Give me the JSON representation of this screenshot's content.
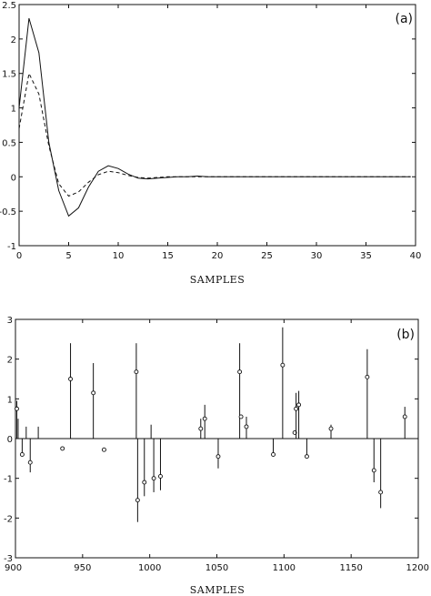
{
  "chart_data": [
    {
      "type": "line",
      "panel_label": "(a)",
      "xlabel": "SAMPLES",
      "ylabel": "",
      "xlim": [
        0,
        40
      ],
      "ylim": [
        -1,
        2.5
      ],
      "xticks": [
        0,
        5,
        10,
        15,
        20,
        25,
        30,
        35,
        40
      ],
      "yticks": [
        2.5,
        2,
        1.5,
        1,
        0.5,
        0,
        -0.5,
        -1
      ],
      "ytick_labels": [
        "2.5",
        "2",
        "1.5",
        "1",
        "0.5",
        "0",
        "-0.5",
        "-1"
      ],
      "grid": false,
      "series": [
        {
          "style": "solid",
          "x": [
            0,
            1,
            2,
            3,
            4,
            5,
            6,
            7,
            8,
            9,
            10,
            11,
            12,
            13,
            14,
            15,
            16,
            17,
            18,
            19,
            20,
            25,
            30,
            35,
            39.5
          ],
          "y": [
            1.0,
            2.3,
            1.8,
            0.5,
            -0.2,
            -0.57,
            -0.45,
            -0.15,
            0.08,
            0.16,
            0.12,
            0.04,
            -0.02,
            -0.03,
            -0.02,
            -0.01,
            0.0,
            0.0,
            0.01,
            0.0,
            0.0,
            0.0,
            0.0,
            0.0,
            0.0
          ]
        },
        {
          "style": "dashed",
          "x": [
            0,
            1,
            2,
            3,
            4,
            5,
            6,
            7,
            8,
            9,
            10,
            11,
            12,
            13,
            14,
            15,
            16,
            17,
            18,
            20,
            25,
            30,
            35,
            39.5
          ],
          "y": [
            0.7,
            1.5,
            1.2,
            0.45,
            -0.1,
            -0.28,
            -0.22,
            -0.08,
            0.03,
            0.08,
            0.06,
            0.02,
            -0.01,
            -0.02,
            -0.01,
            0.0,
            0.0,
            0.0,
            0.0,
            0.0,
            0.0,
            0.0,
            0.0,
            0.0
          ]
        }
      ]
    },
    {
      "type": "scatter",
      "panel_label": "(b)",
      "xlabel": "SAMPLES",
      "ylabel": "",
      "xlim": [
        900,
        1200
      ],
      "ylim": [
        -3,
        3
      ],
      "xticks": [
        900,
        950,
        1000,
        1050,
        1100,
        1150,
        1200
      ],
      "yticks": [
        3,
        2,
        1,
        0,
        -1,
        -2,
        -3
      ],
      "grid": false,
      "points": [
        {
          "x": 901,
          "y": 0.75,
          "stem": 0.95
        },
        {
          "x": 902,
          "y": 0.0,
          "stem": 0.5
        },
        {
          "x": 905,
          "y": -0.4,
          "stem": -0.4
        },
        {
          "x": 908,
          "y": 0.0,
          "stem": 0.3
        },
        {
          "x": 911,
          "y": -0.6,
          "stem": -0.85
        },
        {
          "x": 917,
          "y": 0.0,
          "stem": 0.3
        },
        {
          "x": 935,
          "y": -0.25,
          "stem": null
        },
        {
          "x": 941,
          "y": 1.5,
          "stem": 2.4
        },
        {
          "x": 958,
          "y": 1.15,
          "stem": 1.9
        },
        {
          "x": 966,
          "y": -0.28,
          "stem": null
        },
        {
          "x": 990,
          "y": 1.68,
          "stem": 2.4
        },
        {
          "x": 991,
          "y": -1.55,
          "stem": -2.1
        },
        {
          "x": 996,
          "y": -1.1,
          "stem": -1.45
        },
        {
          "x": 1001,
          "y": 0.0,
          "stem": 0.35
        },
        {
          "x": 1003,
          "y": -1.0,
          "stem": -1.35
        },
        {
          "x": 1008,
          "y": -0.95,
          "stem": -1.3
        },
        {
          "x": 1038,
          "y": 0.25,
          "stem": 0.5
        },
        {
          "x": 1041,
          "y": 0.5,
          "stem": 0.85
        },
        {
          "x": 1051,
          "y": -0.45,
          "stem": -0.75
        },
        {
          "x": 1067,
          "y": 1.68,
          "stem": 2.4
        },
        {
          "x": 1068,
          "y": 0.55,
          "stem": null
        },
        {
          "x": 1072,
          "y": 0.3,
          "stem": 0.55
        },
        {
          "x": 1092,
          "y": -0.4,
          "stem": -0.45
        },
        {
          "x": 1099,
          "y": 1.85,
          "stem": 2.8
        },
        {
          "x": 1108,
          "y": 0.15,
          "stem": null
        },
        {
          "x": 1109,
          "y": 0.75,
          "stem": 1.15
        },
        {
          "x": 1111,
          "y": 0.85,
          "stem": 1.2
        },
        {
          "x": 1117,
          "y": -0.45,
          "stem": -0.5
        },
        {
          "x": 1135,
          "y": 0.25,
          "stem": 0.35
        },
        {
          "x": 1162,
          "y": 1.55,
          "stem": 2.25
        },
        {
          "x": 1167,
          "y": -0.8,
          "stem": -1.1
        },
        {
          "x": 1172,
          "y": -1.35,
          "stem": -1.75
        },
        {
          "x": 1190,
          "y": 0.55,
          "stem": 0.8
        }
      ]
    }
  ]
}
